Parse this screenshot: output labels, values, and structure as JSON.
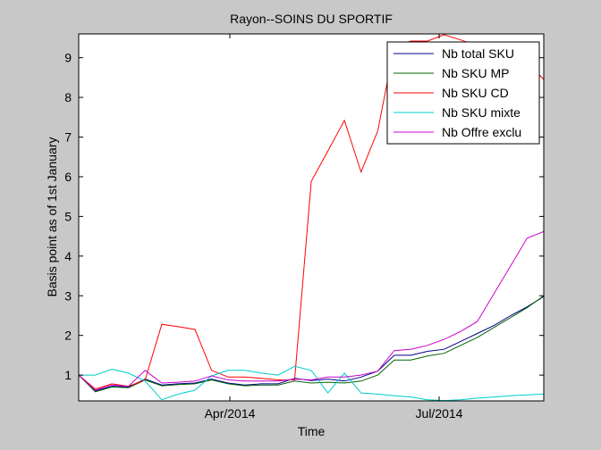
{
  "chart_data": {
    "type": "line",
    "title": "Rayon--SOINS DU SPORTIF",
    "xlabel": "Time",
    "ylabel": "Basis point as of 1st January",
    "x_domain": [
      0,
      28
    ],
    "ylim": [
      0.35,
      9.6
    ],
    "y_ticks": [
      1,
      2,
      3,
      4,
      5,
      6,
      7,
      8,
      9
    ],
    "x_ticks": [
      {
        "x": 9.1,
        "label": "Apr/2014"
      },
      {
        "x": 21.7,
        "label": "Jul/2014"
      }
    ],
    "grid": false,
    "legend_position": "top-right",
    "x": [
      0,
      1,
      2,
      3,
      4,
      5,
      6,
      7,
      8,
      9,
      10,
      11,
      12,
      13,
      14,
      15,
      16,
      17,
      18,
      19,
      20,
      21,
      22,
      23,
      24,
      25,
      26,
      27,
      28
    ],
    "series": [
      {
        "name": "Nb total SKU",
        "color": "#00008b",
        "values": [
          1.0,
          0.6,
          0.72,
          0.7,
          0.9,
          0.75,
          0.78,
          0.8,
          0.9,
          0.8,
          0.75,
          0.78,
          0.78,
          0.92,
          0.86,
          0.9,
          0.85,
          0.95,
          1.1,
          1.5,
          1.5,
          1.6,
          1.65,
          1.85,
          2.05,
          2.25,
          2.5,
          2.72,
          2.98
        ]
      },
      {
        "name": "Nb SKU MP",
        "color": "#006400",
        "values": [
          1.0,
          0.58,
          0.7,
          0.68,
          0.88,
          0.73,
          0.76,
          0.78,
          0.88,
          0.78,
          0.73,
          0.75,
          0.75,
          0.85,
          0.8,
          0.82,
          0.8,
          0.85,
          1.0,
          1.38,
          1.38,
          1.48,
          1.55,
          1.75,
          1.95,
          2.2,
          2.45,
          2.7,
          3.0
        ]
      },
      {
        "name": "Nb SKU CD",
        "color": "#ff0000",
        "values": [
          1.0,
          0.65,
          0.78,
          0.72,
          0.88,
          2.28,
          2.22,
          2.15,
          1.12,
          0.95,
          0.95,
          0.92,
          0.88,
          0.88,
          5.88,
          6.65,
          7.42,
          6.12,
          7.15,
          9.28,
          9.42,
          9.42,
          9.58,
          9.45,
          9.3,
          9.3,
          8.95,
          8.9,
          8.45
        ]
      },
      {
        "name": "Nb SKU mixte",
        "color": "#00cccc",
        "values": [
          1.0,
          1.0,
          1.15,
          1.05,
          0.85,
          0.38,
          0.52,
          0.62,
          0.98,
          1.12,
          1.12,
          1.05,
          1.0,
          1.22,
          1.12,
          0.55,
          1.05,
          0.55,
          0.52,
          0.48,
          0.45,
          0.38,
          0.36,
          0.38,
          0.42,
          0.45,
          0.48,
          0.5,
          0.52
        ]
      },
      {
        "name": "Nb Offre exclu",
        "color": "#cc00cc",
        "values": [
          1.0,
          0.62,
          0.75,
          0.72,
          1.12,
          0.8,
          0.82,
          0.85,
          0.98,
          0.88,
          0.85,
          0.85,
          0.85,
          0.9,
          0.88,
          0.95,
          0.95,
          1.0,
          1.1,
          1.62,
          1.65,
          1.75,
          1.9,
          2.1,
          2.35,
          3.05,
          3.75,
          4.45,
          4.62
        ]
      }
    ]
  }
}
